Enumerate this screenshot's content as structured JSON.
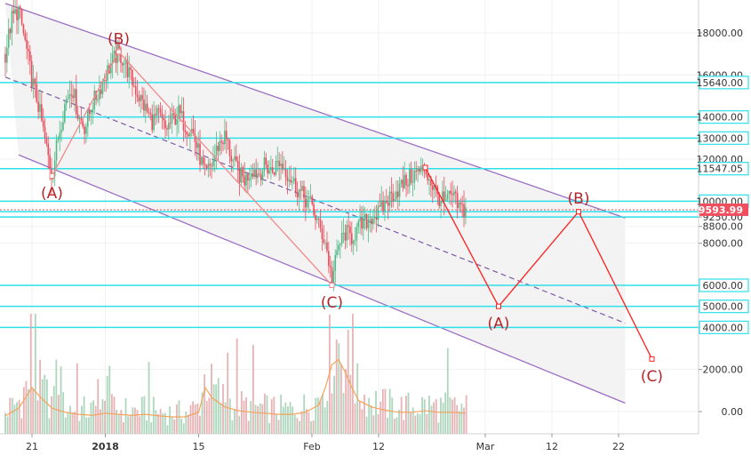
{
  "chart_data": {
    "type": "candlestick",
    "instrument": "BTCUSD",
    "ylim": [
      -500,
      19400
    ],
    "y_ticks": [
      {
        "value": 18000,
        "label": "18000.00"
      },
      {
        "value": 16000,
        "label": "16000.00"
      },
      {
        "value": 14000,
        "label": "14000.00"
      },
      {
        "value": 13000,
        "label": "13000.00"
      },
      {
        "value": 12000,
        "label": "12000.00"
      },
      {
        "value": 10000,
        "label": "10000.00"
      },
      {
        "value": 9500,
        "label": "9500.00"
      },
      {
        "value": 9250,
        "label": "9250.00"
      },
      {
        "value": 8800,
        "label": "8800.00"
      },
      {
        "value": 8000,
        "label": "8000.00"
      },
      {
        "value": 6000,
        "label": "6000.00"
      },
      {
        "value": 5000,
        "label": "5000.00"
      },
      {
        "value": 4000,
        "label": "4000.00"
      },
      {
        "value": 2000,
        "label": "2000.00"
      },
      {
        "value": 0,
        "label": "0.00"
      }
    ],
    "horizontal_levels": [
      {
        "value": 15640,
        "label": "15640.00",
        "boxed": true
      },
      {
        "value": 14000,
        "label": "14000.00",
        "boxed": true
      },
      {
        "value": 13000,
        "label": "13000.00",
        "boxed": true
      },
      {
        "value": 11547.05,
        "label": "11547.05",
        "boxed": true
      },
      {
        "value": 10000,
        "label": "10000.00",
        "boxed": true
      },
      {
        "value": 9500,
        "label": "9500.00",
        "boxed": false
      },
      {
        "value": 9250,
        "label": "9250.00",
        "boxed": false
      },
      {
        "value": 6000,
        "label": "6000.00",
        "boxed": true
      },
      {
        "value": 5000,
        "label": "5000.00",
        "boxed": true
      },
      {
        "value": 4000,
        "label": "4000.00",
        "boxed": true
      }
    ],
    "last_price": {
      "value": 9593.99,
      "label": "9593.99",
      "color": "#ef4f5f"
    },
    "x_ticks": [
      {
        "t": 4,
        "label": "21",
        "bold": false
      },
      {
        "t": 15,
        "label": "2018",
        "bold": true
      },
      {
        "t": 29,
        "label": "15",
        "bold": false
      },
      {
        "t": 46,
        "label": "Feb",
        "bold": false
      },
      {
        "t": 56,
        "label": "12",
        "bold": false
      },
      {
        "t": 72,
        "label": "Mar",
        "bold": false
      },
      {
        "t": 82,
        "label": "12",
        "bold": false
      },
      {
        "t": 92,
        "label": "22",
        "bold": false
      }
    ],
    "close_path": [
      [
        0,
        17000
      ],
      [
        1,
        18700
      ],
      [
        2,
        19100
      ],
      [
        3,
        17500
      ],
      [
        4,
        15800
      ],
      [
        5,
        14500
      ],
      [
        6,
        12800
      ],
      [
        7,
        11200
      ],
      [
        8,
        13200
      ],
      [
        9,
        14700
      ],
      [
        10,
        15500
      ],
      [
        11,
        14000
      ],
      [
        12,
        13500
      ],
      [
        13,
        14600
      ],
      [
        14,
        15200
      ],
      [
        15,
        16000
      ],
      [
        16,
        16600
      ],
      [
        17,
        17100
      ],
      [
        18,
        16500
      ],
      [
        19,
        15700
      ],
      [
        20,
        15000
      ],
      [
        21,
        14400
      ],
      [
        22,
        13800
      ],
      [
        23,
        14100
      ],
      [
        24,
        13400
      ],
      [
        25,
        13800
      ],
      [
        26,
        14200
      ],
      [
        27,
        13600
      ],
      [
        28,
        13400
      ],
      [
        29,
        12300
      ],
      [
        30,
        11200
      ],
      [
        31,
        11800
      ],
      [
        32,
        12700
      ],
      [
        33,
        13100
      ],
      [
        34,
        12000
      ],
      [
        35,
        11300
      ],
      [
        36,
        11000
      ],
      [
        37,
        11600
      ],
      [
        38,
        11300
      ],
      [
        39,
        11700
      ],
      [
        40,
        11400
      ],
      [
        41,
        11900
      ],
      [
        42,
        11500
      ],
      [
        43,
        11000
      ],
      [
        44,
        10500
      ],
      [
        45,
        10100
      ],
      [
        46,
        9800
      ],
      [
        47,
        8800
      ],
      [
        48,
        8100
      ],
      [
        49,
        6200
      ],
      [
        50,
        7900
      ],
      [
        51,
        8500
      ],
      [
        52,
        8300
      ],
      [
        53,
        8700
      ],
      [
        54,
        9000
      ],
      [
        55,
        9300
      ],
      [
        56,
        9400
      ],
      [
        57,
        9900
      ],
      [
        58,
        10300
      ],
      [
        59,
        10600
      ],
      [
        60,
        10900
      ],
      [
        61,
        11200
      ],
      [
        62,
        11400
      ],
      [
        63,
        11500
      ],
      [
        64,
        10800
      ],
      [
        65,
        10200
      ],
      [
        66,
        9900
      ],
      [
        67,
        10300
      ],
      [
        68,
        9700
      ],
      [
        69,
        9594
      ]
    ],
    "volume_path": [
      [
        0,
        350
      ],
      [
        2,
        500
      ],
      [
        4,
        900
      ],
      [
        5,
        750
      ],
      [
        7,
        500
      ],
      [
        9,
        420
      ],
      [
        11,
        380
      ],
      [
        13,
        360
      ],
      [
        15,
        400
      ],
      [
        17,
        380
      ],
      [
        19,
        360
      ],
      [
        21,
        380
      ],
      [
        23,
        350
      ],
      [
        25,
        330
      ],
      [
        27,
        330
      ],
      [
        29,
        420
      ],
      [
        30,
        900
      ],
      [
        31,
        700
      ],
      [
        33,
        520
      ],
      [
        35,
        450
      ],
      [
        37,
        420
      ],
      [
        39,
        400
      ],
      [
        41,
        380
      ],
      [
        43,
        380
      ],
      [
        45,
        420
      ],
      [
        47,
        560
      ],
      [
        48,
        900
      ],
      [
        49,
        1350
      ],
      [
        50,
        1450
      ],
      [
        51,
        1200
      ],
      [
        52,
        900
      ],
      [
        53,
        650
      ],
      [
        55,
        520
      ],
      [
        57,
        460
      ],
      [
        59,
        420
      ],
      [
        61,
        420
      ],
      [
        63,
        450
      ],
      [
        65,
        420
      ],
      [
        67,
        420
      ],
      [
        69,
        400
      ]
    ],
    "channel": {
      "upper": [
        [
          0,
          19400
        ],
        [
          93,
          9200
        ]
      ],
      "lower": [
        [
          2,
          12200
        ],
        [
          93,
          400
        ]
      ],
      "midline": [
        [
          0,
          15900
        ],
        [
          93,
          4200
        ]
      ]
    },
    "elliott_past": [
      {
        "t": 7,
        "value": 11200,
        "label": "(A)",
        "label_pos": "below"
      },
      {
        "t": 17,
        "value": 17100,
        "label": "(B)",
        "label_pos": "above"
      },
      {
        "t": 49,
        "value": 6000,
        "label": "(C)",
        "label_pos": "below"
      }
    ],
    "elliott_projection": [
      {
        "t": 63,
        "value": 11600,
        "label": "",
        "label_pos": "none"
      },
      {
        "t": 74,
        "value": 5000,
        "label": "(A)",
        "label_pos": "below"
      },
      {
        "t": 86,
        "value": 9500,
        "label": "(B)",
        "label_pos": "above"
      },
      {
        "t": 97,
        "value": 2500,
        "label": "(C)",
        "label_pos": "below"
      }
    ]
  }
}
